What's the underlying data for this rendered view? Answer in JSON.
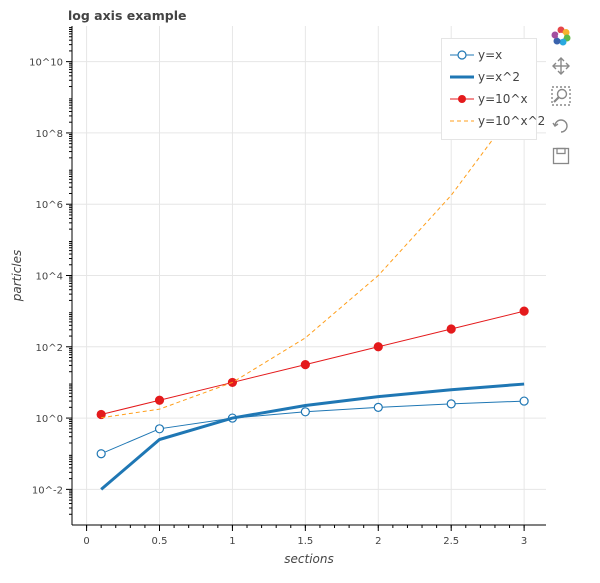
{
  "chart_data": {
    "type": "line",
    "title": "log axis example",
    "xlabel": "sections",
    "ylabel": "particles",
    "x": [
      0.1,
      0.5,
      1,
      1.5,
      2,
      2.5,
      3
    ],
    "y_scale": "log",
    "xlim": [
      -0.1,
      3.15
    ],
    "ylim": [
      0.001,
      100000000000
    ],
    "x_ticks": [
      0,
      0.5,
      1,
      1.5,
      2,
      2.5,
      3
    ],
    "x_tick_labels": [
      "0",
      "0.5",
      "1",
      "1.5",
      "2",
      "2.5",
      "3"
    ],
    "y_ticks": [
      0.01,
      1,
      100,
      10000,
      1000000,
      100000000,
      10000000000
    ],
    "y_tick_labels": [
      "10^-2",
      "10^0",
      "10^2",
      "10^4",
      "10^6",
      "10^8",
      "10^10"
    ],
    "grid": true,
    "legend_position": "top-right",
    "series": [
      {
        "name": "y=x",
        "values": [
          0.1,
          0.5,
          1,
          1.5,
          2,
          2.5,
          3
        ],
        "color": "#1f77b4",
        "style": "line-open-circle"
      },
      {
        "name": "y=x^2",
        "values": [
          0.01,
          0.25,
          1,
          2.25,
          4,
          6.25,
          9
        ],
        "color": "#1f77b4",
        "style": "thick-line"
      },
      {
        "name": "y=10^x",
        "values": [
          1.26,
          3.16,
          10,
          31.6,
          100,
          316,
          1000
        ],
        "color": "#e41a1c",
        "style": "line-filled-circle"
      },
      {
        "name": "y=10^x^2",
        "values": [
          1.02,
          1.78,
          10,
          177.8,
          10000,
          1778279,
          1000000000
        ],
        "color": "#ff9f1c",
        "style": "dashed-line"
      }
    ]
  },
  "toolbar": {
    "items": [
      "logo-icon",
      "pan-icon",
      "zoom-icon",
      "reset-icon",
      "save-icon"
    ]
  }
}
